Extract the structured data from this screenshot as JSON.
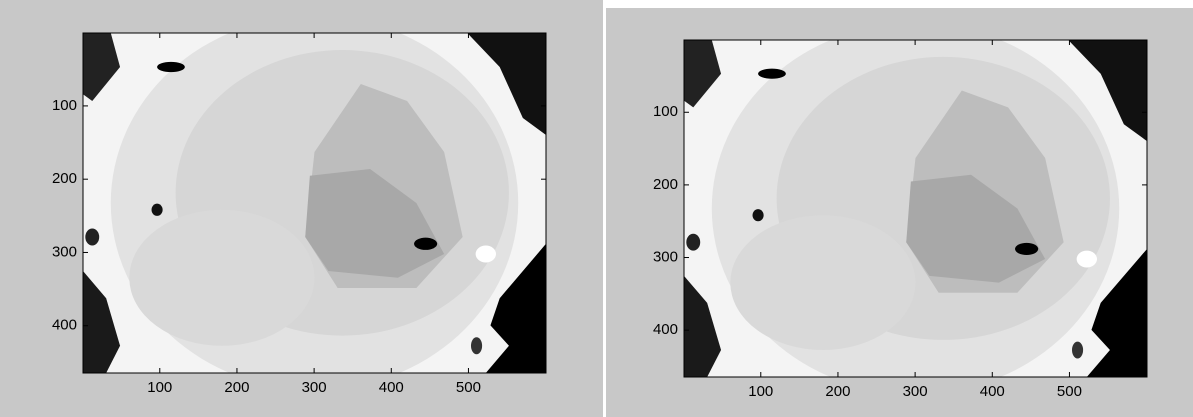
{
  "chart_data": [
    {
      "type": "image",
      "xlim": [
        0.5,
        600.5
      ],
      "ylim": [
        0.5,
        464.5
      ],
      "xticks": [
        100,
        200,
        300,
        400,
        500
      ],
      "yticks": [
        100,
        200,
        300,
        400
      ]
    },
    {
      "type": "image",
      "xlim": [
        0.5,
        600.5
      ],
      "ylim": [
        0.5,
        464.5
      ],
      "xticks": [
        100,
        200,
        300,
        400,
        500
      ],
      "yticks": [
        100,
        200,
        300,
        400
      ]
    }
  ]
}
